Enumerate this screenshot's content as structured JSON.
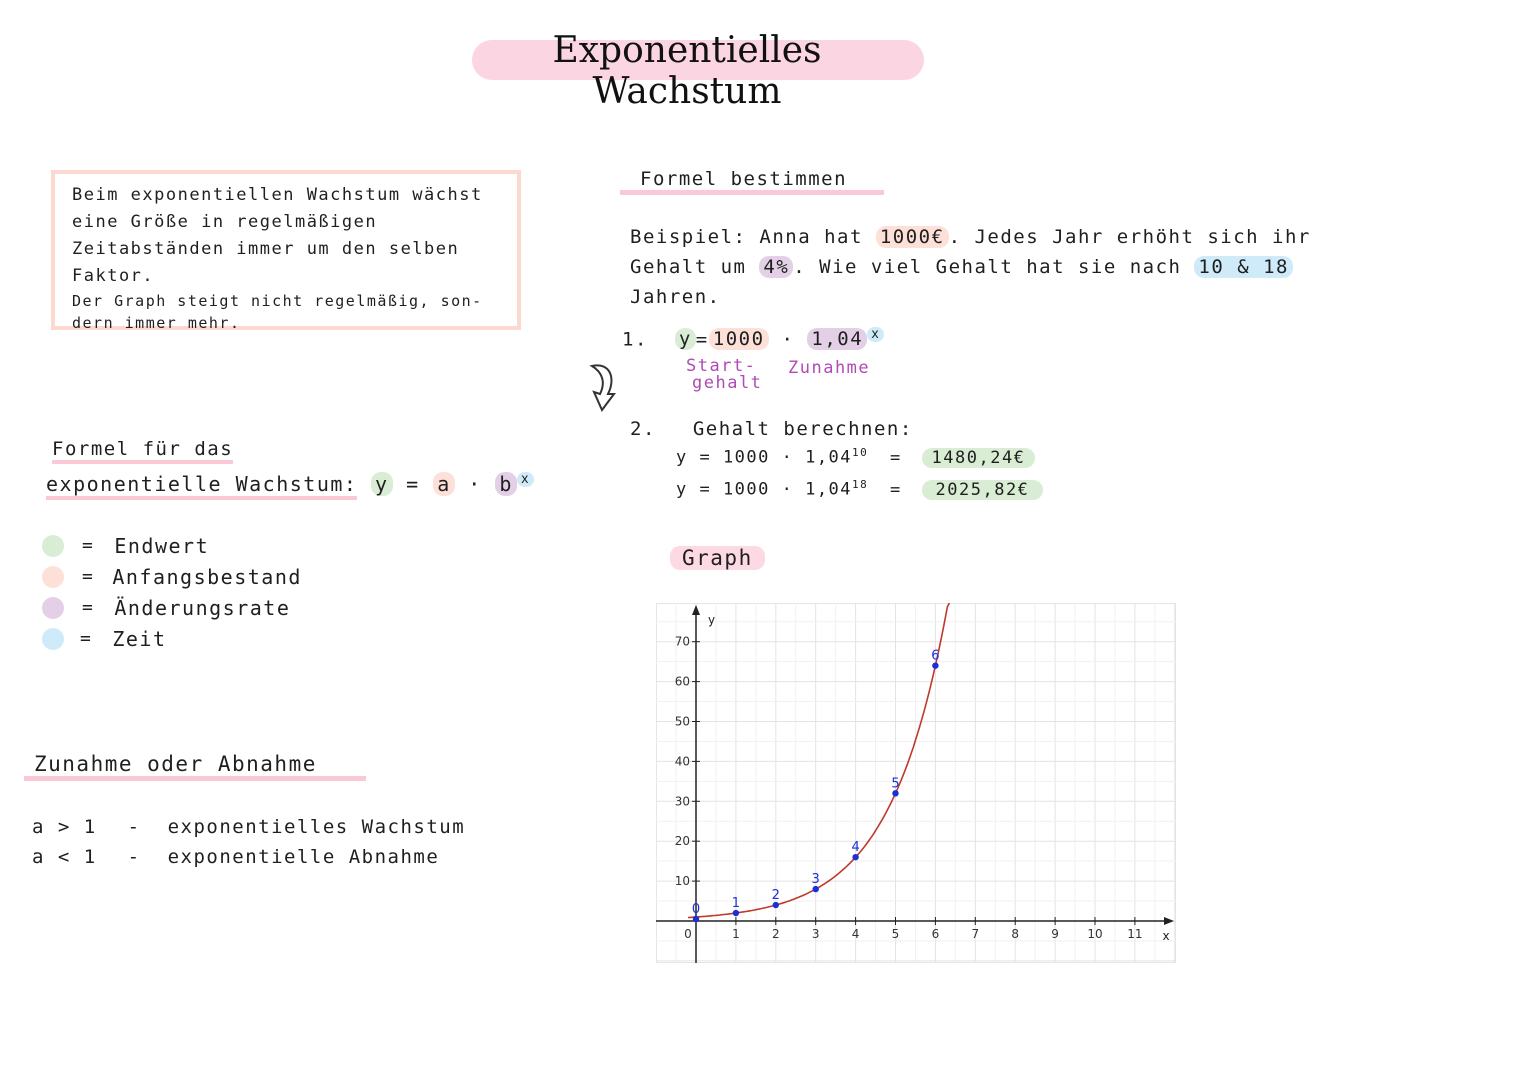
{
  "title": "Exponentielles Wachstum",
  "definition": {
    "text1": "Beim exponentiellen Wachstum wächst eine Größe in regelmäßigen Zeitabständen immer um den selben Faktor.",
    "text2": "Der Graph steigt nicht regelmäßig, son-dern immer mehr."
  },
  "formula_section": {
    "heading_line1": "Formel für das",
    "heading_line2": "exponentielle Wachstum:",
    "y": "y",
    "eq": "=",
    "a": "a",
    "dot": "·",
    "b": "b",
    "x": "x"
  },
  "legend": [
    {
      "color": "#d9ecd4",
      "eq": "=",
      "label": "Endwert"
    },
    {
      "color": "#fde0d8",
      "eq": "=",
      "label": "Anfangsbestand"
    },
    {
      "color": "#e3d0e6",
      "eq": "=",
      "label": "Änderungsrate"
    },
    {
      "color": "#cfeaf8",
      "eq": "=",
      "label": "Zeit"
    }
  ],
  "growth_section": {
    "heading": "Zunahme oder Abnahme",
    "row1_cond": "a > 1",
    "row1_dash": "-",
    "row1_text": "exponentielles Wachstum",
    "row2_cond": "a < 1",
    "row2_dash": "-",
    "row2_text": "exponentielle Abnahme"
  },
  "example": {
    "heading": "Formel bestimmen",
    "line1_a": "Beispiel: Anna hat",
    "amount": "1000€",
    "line1_b": ". Jedes Jahr erhöht sich ihr",
    "line2_a": "Gehalt um",
    "rate": "4%",
    "line2_b": ". Wie viel Gehalt hat sie nach",
    "years": "10 & 18",
    "line3": "Jahren.",
    "step1_num": "1.",
    "step1_y": "y",
    "step1_eq": "=",
    "step1_a": "1000",
    "step1_dot": "·",
    "step1_b": "1,04",
    "step1_x": "x",
    "label_start_1": "Start-",
    "label_start_2": "gehalt",
    "label_zunahme": "Zunahme",
    "step2_num": "2.",
    "step2_heading": "Gehalt berechnen:",
    "calc1_lhs": "y = 1000 · 1,04",
    "calc1_exp": "10",
    "calc1_eq": "=",
    "calc1_result": "1480,24€",
    "calc2_lhs": "y = 1000 · 1,04",
    "calc2_exp": "18",
    "calc2_eq": "=",
    "calc2_result": "2025,82€"
  },
  "graph_heading": "Graph",
  "chart_data": {
    "type": "line",
    "title": "",
    "xlabel": "x",
    "ylabel": "y",
    "xlim": [
      0,
      11
    ],
    "ylim": [
      0,
      70
    ],
    "x_ticks": [
      0,
      1,
      2,
      3,
      4,
      5,
      6,
      7,
      8,
      9,
      10,
      11
    ],
    "y_ticks": [
      10,
      20,
      30,
      40,
      50,
      60,
      70
    ],
    "grid": true,
    "curve_color": "#c0392b",
    "point_color": "#1a2fd6",
    "points": [
      {
        "label": "0",
        "x": 0,
        "y": 0.5
      },
      {
        "label": "1",
        "x": 1,
        "y": 2
      },
      {
        "label": "2",
        "x": 2,
        "y": 4
      },
      {
        "label": "3",
        "x": 3,
        "y": 8
      },
      {
        "label": "4",
        "x": 4,
        "y": 16
      },
      {
        "label": "5",
        "x": 5,
        "y": 32
      },
      {
        "label": "6",
        "x": 6,
        "y": 64
      }
    ]
  }
}
